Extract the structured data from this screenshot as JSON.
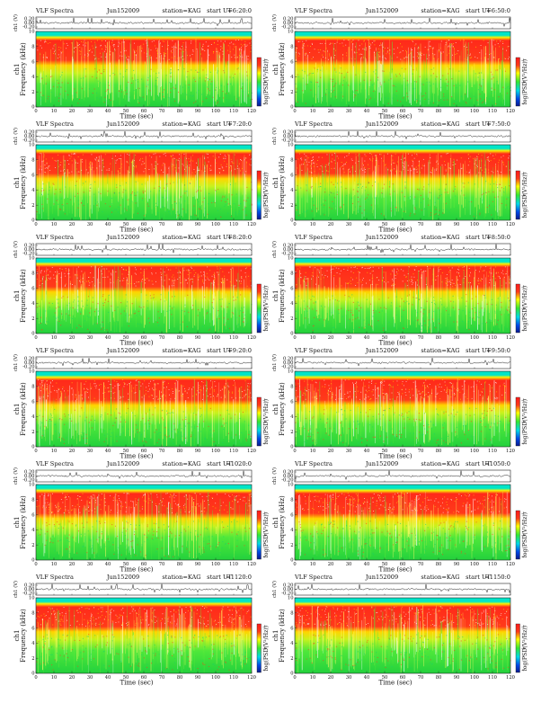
{
  "figure": {
    "layout": "6 rows x 2 columns",
    "common": {
      "type_label": "VLF Spectra",
      "date": "Jun152009",
      "station": "station=KAG",
      "start_prefix": "start  UT",
      "waveform_ylabel": "ch1 (V)",
      "waveform_ticks": [
        "0.20",
        "0.00",
        "-0.20"
      ],
      "spectro_ylabel": "Frequency (kHz)",
      "spectro_side_label": "ch1",
      "spectro_yticks": [
        "0",
        "2",
        "4",
        "6",
        "8",
        "10"
      ],
      "xlabel": "Time (sec)",
      "xticks": [
        "0",
        "10",
        "20",
        "30",
        "40",
        "50",
        "60",
        "70",
        "80",
        "90",
        "100",
        "110",
        "120"
      ],
      "colorbar_label": "log(PSD(V²/Hz))",
      "colorbar_ticks": [
        "-1",
        "-4",
        "-7"
      ]
    },
    "colors": {
      "high": "#ff1a1a",
      "mid_high": "#ffff00",
      "mid": "#33e633",
      "low": "#00e6cc",
      "min": "#0033cc",
      "trace": "#222222"
    }
  },
  "chart_data": [
    {
      "type": "heatmap",
      "start_ut": "=6:20:0",
      "xlim": [
        0,
        120
      ],
      "ylim": [
        0,
        10
      ]
    },
    {
      "type": "heatmap",
      "start_ut": "=6:50:0",
      "xlim": [
        0,
        120
      ],
      "ylim": [
        0,
        10
      ]
    },
    {
      "type": "heatmap",
      "start_ut": "=7:20:0",
      "xlim": [
        0,
        120
      ],
      "ylim": [
        0,
        10
      ]
    },
    {
      "type": "heatmap",
      "start_ut": "=7:50:0",
      "xlim": [
        0,
        120
      ],
      "ylim": [
        0,
        10
      ]
    },
    {
      "type": "heatmap",
      "start_ut": "=8:20:0",
      "xlim": [
        0,
        120
      ],
      "ylim": [
        0,
        10
      ]
    },
    {
      "type": "heatmap",
      "start_ut": "=8:50:0",
      "xlim": [
        0,
        120
      ],
      "ylim": [
        0,
        10
      ]
    },
    {
      "type": "heatmap",
      "start_ut": "=9:20:0",
      "xlim": [
        0,
        120
      ],
      "ylim": [
        0,
        10
      ]
    },
    {
      "type": "heatmap",
      "start_ut": "=9:50:0",
      "xlim": [
        0,
        120
      ],
      "ylim": [
        0,
        10
      ]
    },
    {
      "type": "heatmap",
      "start_ut": "=1020:0",
      "xlim": [
        0,
        120
      ],
      "ylim": [
        0,
        10
      ]
    },
    {
      "type": "heatmap",
      "start_ut": "=1050:0",
      "xlim": [
        0,
        120
      ],
      "ylim": [
        0,
        10
      ]
    },
    {
      "type": "heatmap",
      "start_ut": "=1120:0",
      "xlim": [
        0,
        120
      ],
      "ylim": [
        0,
        10
      ]
    },
    {
      "type": "heatmap",
      "start_ut": "=1150:0",
      "xlim": [
        0,
        120
      ],
      "ylim": [
        0,
        10
      ]
    }
  ]
}
